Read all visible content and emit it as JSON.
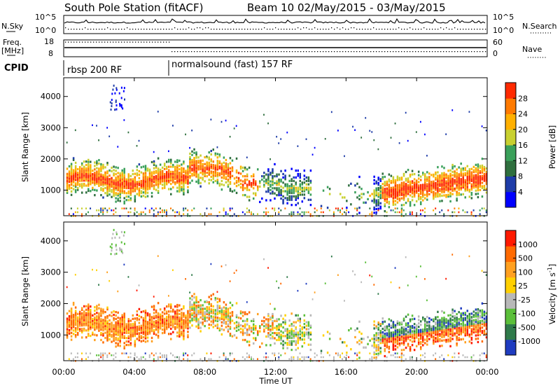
{
  "header": {
    "title": "South Pole Station (fitACF)",
    "subtitle": "Beam 10 02/May/2015 - 03/May/2015"
  },
  "status_panels": {
    "nsky_label": "N.Sky",
    "nsky_ticks": [
      "10^5",
      "10^0"
    ],
    "nsearch_label": "N.Search",
    "nsearch_ticks": [
      "10^5",
      "10^0"
    ],
    "freq_label_1": "Freq.",
    "freq_label_2": "[MHz]",
    "freq_ticks": [
      "18",
      "8"
    ],
    "nave_label": "Nave",
    "nave_ticks": [
      "60",
      "0"
    ],
    "cpid_label": "CPID",
    "cpid_segments": [
      {
        "label": "rbsp 200 RF",
        "start_hour": 0
      },
      {
        "label": "normalsound (fast) 157 RF",
        "start_hour": 6
      }
    ]
  },
  "axes": {
    "ylabel": "Slant Range [km]",
    "xlabel": "Time UT",
    "x_ticks": [
      "00:00",
      "04:00",
      "08:00",
      "12:00",
      "16:00",
      "20:00",
      "00:00"
    ],
    "y_ticks": [
      "1000",
      "2000",
      "3000",
      "4000"
    ]
  },
  "chart_data": [
    {
      "type": "heatmap",
      "name": "power",
      "x_range_hours": [
        0,
        24
      ],
      "y_range_km": [
        180,
        4600
      ],
      "x_ticks": [
        "00:00",
        "04:00",
        "08:00",
        "12:00",
        "16:00",
        "20:00",
        "00:00"
      ],
      "y_ticks": [
        1000,
        2000,
        3000,
        4000
      ],
      "ylabel": "Slant Range [km]",
      "colorbar": {
        "label": "Power [dB]",
        "ticks": [
          "28",
          "24",
          "20",
          "16",
          "12",
          "8",
          "4"
        ],
        "colors": [
          "#0000ff",
          "#1e3ca8",
          "#2f6f3e",
          "#3aa05a",
          "#c8d030",
          "#ffb000",
          "#ff7a00",
          "#ff2a00"
        ]
      }
    },
    {
      "type": "heatmap",
      "name": "velocity",
      "x_range_hours": [
        0,
        24
      ],
      "y_range_km": [
        180,
        4600
      ],
      "x_ticks": [
        "00:00",
        "04:00",
        "08:00",
        "12:00",
        "16:00",
        "20:00",
        "00:00"
      ],
      "y_ticks": [
        1000,
        2000,
        3000,
        4000
      ],
      "ylabel": "Slant Range [km]",
      "xlabel": "Time UT",
      "colorbar": {
        "label": "Velocity [m s",
        "label_sup": "-1",
        "label_close": "]",
        "ticks": [
          "1000",
          "500",
          "100",
          "25",
          "-25",
          "-100",
          "-500",
          "-1000"
        ],
        "colors": [
          "#1f3cc0",
          "#2f7a4a",
          "#5bbf3a",
          "#b8b8b8",
          "#ffd000",
          "#ffa020",
          "#ff6a00",
          "#ff1a00"
        ]
      }
    }
  ]
}
